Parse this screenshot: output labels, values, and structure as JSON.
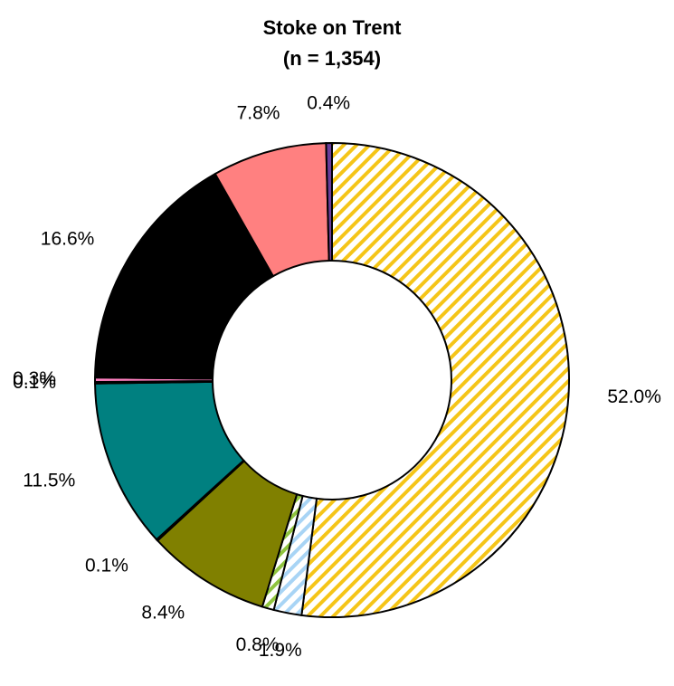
{
  "chart_data": {
    "type": "donut",
    "title": "Stoke on Trent",
    "subtitle": "(n = 1,354)",
    "values": [
      52.0,
      1.9,
      0.8,
      8.4,
      0.1,
      11.5,
      0.1,
      0.3,
      16.6,
      7.8,
      0.4
    ],
    "value_labels": [
      "52.0%",
      "1.9%",
      "0.8%",
      "8.4%",
      "0.1%",
      "11.5%",
      "0.1%",
      "0.3%",
      "16.6%",
      "7.8%",
      "0.4%"
    ],
    "colors": [
      "#f5c518",
      "#a8d4f5",
      "#8fc43f",
      "#808000",
      "#b0b0b0",
      "#008080",
      "#3050f0",
      "#ff80c0",
      "#000000",
      "#ff8080",
      "#6a3d9a"
    ],
    "hatch": [
      true,
      true,
      true,
      false,
      false,
      false,
      false,
      false,
      false,
      false,
      false
    ]
  }
}
